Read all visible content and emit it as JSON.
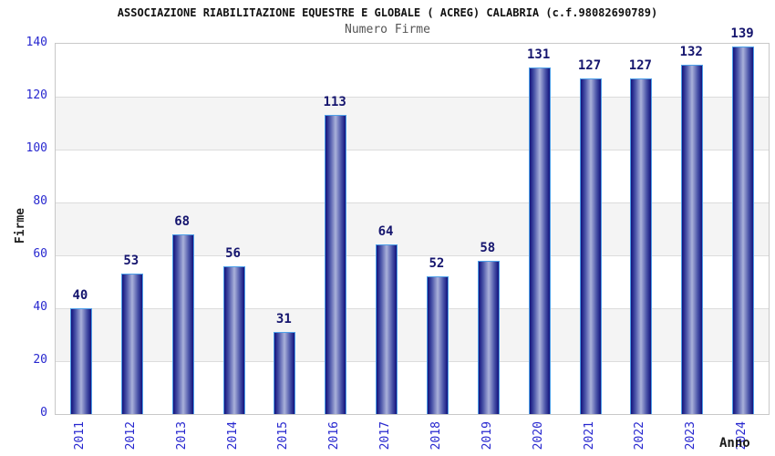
{
  "header": {
    "title": "ASSOCIAZIONE RIABILITAZIONE EQUESTRE E GLOBALE ( ACREG) CALABRIA (c.f.98082690789)",
    "subtitle": "Numero Firme"
  },
  "chart_data": {
    "type": "bar",
    "title": "ASSOCIAZIONE RIABILITAZIONE EQUESTRE E GLOBALE ( ACREG) CALABRIA (c.f.98082690789)",
    "subtitle": "Numero Firme",
    "xlabel": "Anno",
    "ylabel": "Firme",
    "categories": [
      "2011",
      "2012",
      "2013",
      "2014",
      "2015",
      "2016",
      "2017",
      "2018",
      "2019",
      "2020",
      "2021",
      "2022",
      "2023",
      "2024"
    ],
    "values": [
      40,
      53,
      68,
      56,
      31,
      113,
      64,
      52,
      58,
      131,
      127,
      127,
      132,
      139
    ],
    "ylim": [
      0,
      140
    ],
    "ytick_step": 20,
    "grid": true,
    "legend_position": "none",
    "colors": {
      "bar_edge_dark": "#12127c",
      "bar_mid": "#4a54a8",
      "bar_center_light": "#aab1da",
      "bar_border": "#4d9fe8",
      "tick_label": "#2727cf",
      "value_label": "#15156e",
      "band_fill": "#f4f4f4",
      "gridline": "#dcdcdc",
      "plot_border": "#c8c8c8",
      "title_color": "#111111",
      "subtitle_color": "#555555",
      "axis_title_color": "#1a1a1a",
      "background": "#ffffff"
    }
  }
}
